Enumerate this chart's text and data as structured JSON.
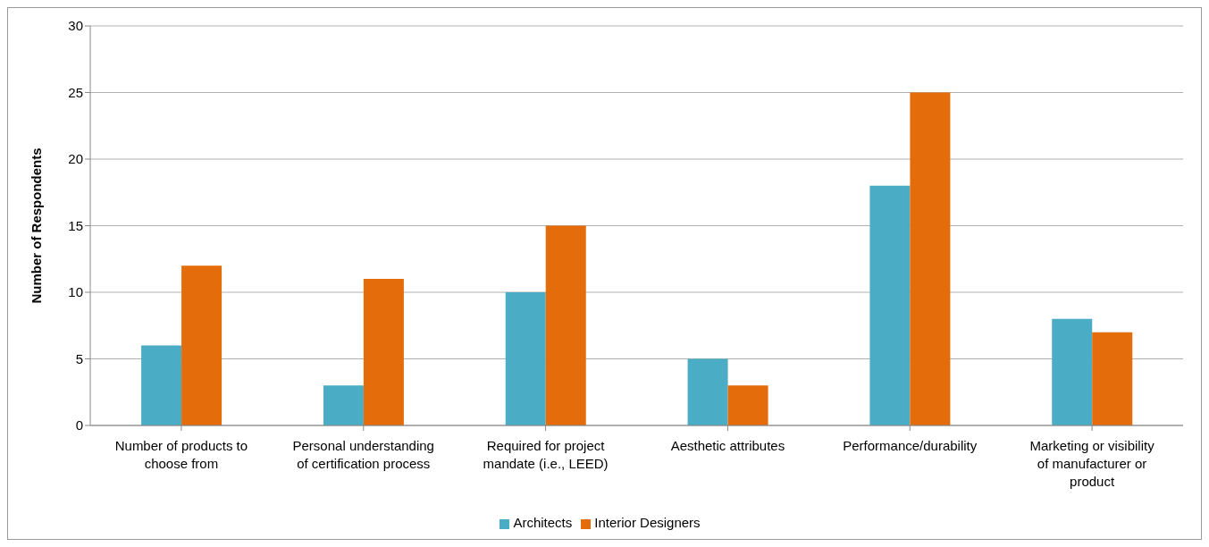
{
  "chart_data": {
    "type": "bar",
    "ylabel": "Number of Respondents",
    "categories": [
      "Number of products to choose from",
      "Personal understanding of certification process",
      "Required for project mandate (i.e., LEED)",
      "Aesthetic attributes",
      "Performance/durability",
      "Marketing or visibility of manufacturer or product"
    ],
    "series": [
      {
        "name": "Architects",
        "color": "#4bacc6",
        "values": [
          6,
          3,
          10,
          5,
          18,
          8
        ]
      },
      {
        "name": "Interior Designers",
        "color": "#e46c0a",
        "values": [
          12,
          11,
          15,
          3,
          25,
          7
        ]
      }
    ],
    "ylim": [
      0,
      30
    ],
    "yticks": [
      0,
      5,
      10,
      15,
      20,
      25,
      30
    ],
    "grid": "y",
    "legend": "bottom"
  }
}
